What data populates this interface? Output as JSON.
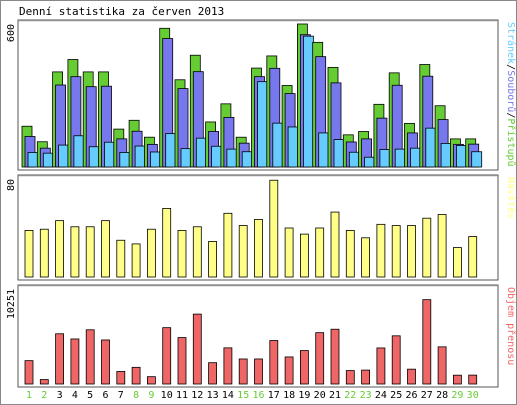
{
  "title": "Denní statistika za červen 2013",
  "colors": {
    "hits": "#66cc33",
    "files": "#7777ee",
    "pages": "#66ccff",
    "visits": "#ffff88",
    "kbytes": "#ee6666",
    "weekend_label": "#66cc33",
    "weekday_label": "#000000"
  },
  "chart_data": [
    {
      "type": "bar",
      "title": "",
      "ylabel": "600",
      "ymax": 600,
      "legend": [
        {
          "name": "Stránek",
          "color": "#66ccff"
        },
        {
          "name": "Souborů",
          "color": "#7777ee"
        },
        {
          "name": "Přístupů",
          "color": "#66cc33"
        }
      ],
      "categories": [
        "1",
        "2",
        "3",
        "4",
        "5",
        "6",
        "7",
        "8",
        "9",
        "10",
        "11",
        "12",
        "13",
        "14",
        "15",
        "16",
        "17",
        "18",
        "19",
        "20",
        "21",
        "22",
        "23",
        "24",
        "25",
        "26",
        "27",
        "28",
        "29",
        "30"
      ],
      "series": [
        {
          "name": "Přístupů",
          "values": [
            171,
            106,
            399,
            451,
            399,
            399,
            159,
            196,
            125,
            582,
            366,
            469,
            189,
            265,
            125,
            415,
            466,
            342,
            600,
            523,
            418,
            135,
            149,
            263,
            395,
            183,
            430,
            257,
            118,
            118
          ]
        },
        {
          "name": "Souborů",
          "values": [
            128,
            79,
            344,
            379,
            337,
            339,
            118,
            150,
            95,
            539,
            329,
            400,
            149,
            208,
            100,
            379,
            414,
            308,
            555,
            463,
            353,
            105,
            118,
            205,
            343,
            143,
            381,
            199,
            95,
            96
          ]
        },
        {
          "name": "Stránek",
          "values": [
            61,
            58,
            92,
            131,
            85,
            104,
            61,
            88,
            63,
            140,
            77,
            121,
            87,
            75,
            64,
            358,
            184,
            168,
            549,
            143,
            115,
            62,
            41,
            73,
            75,
            79,
            163,
            99,
            90,
            64
          ]
        }
      ]
    },
    {
      "type": "bar",
      "title": "",
      "ylabel": "80",
      "ymax": 80,
      "legend": [
        {
          "name": "Návštěv",
          "color": "#ffff88"
        }
      ],
      "categories": [
        "1",
        "2",
        "3",
        "4",
        "5",
        "6",
        "7",
        "8",
        "9",
        "10",
        "11",
        "12",
        "13",
        "14",
        "15",
        "16",
        "17",
        "18",
        "19",
        "20",
        "21",
        "22",
        "23",
        "24",
        "25",
        "26",
        "27",
        "28",
        "29",
        "30"
      ],
      "series": [
        {
          "name": "Návštěv",
          "values": [
            38,
            39,
            46,
            41,
            41,
            46,
            30,
            27,
            39,
            56,
            38,
            41,
            29,
            52,
            42,
            47,
            79,
            40,
            35,
            40,
            53,
            38,
            32,
            43,
            42,
            42,
            48,
            51,
            24,
            33
          ]
        }
      ]
    },
    {
      "type": "bar",
      "title": "",
      "ylabel": "10251",
      "ymax": 10251,
      "legend": [
        {
          "name": "Objem přenosu",
          "color": "#ee6666"
        }
      ],
      "categories": [
        "1",
        "2",
        "3",
        "4",
        "5",
        "6",
        "7",
        "8",
        "9",
        "10",
        "11",
        "12",
        "13",
        "14",
        "15",
        "16",
        "17",
        "18",
        "19",
        "20",
        "21",
        "22",
        "23",
        "24",
        "25",
        "26",
        "27",
        "28",
        "29",
        "30"
      ],
      "series": [
        {
          "name": "Objem přenosu",
          "values": [
            2520,
            480,
            5420,
            4860,
            5850,
            4750,
            1350,
            1800,
            790,
            6080,
            5010,
            7540,
            2300,
            3900,
            2700,
            2700,
            4690,
            2920,
            3610,
            5540,
            5910,
            1450,
            1500,
            3890,
            5200,
            1600,
            9100,
            4010,
            950,
            960
          ]
        }
      ]
    }
  ],
  "day_labels": [
    "1",
    "2",
    "3",
    "4",
    "5",
    "6",
    "7",
    "8",
    "9",
    "10",
    "11",
    "12",
    "13",
    "14",
    "15",
    "16",
    "17",
    "18",
    "19",
    "20",
    "21",
    "22",
    "23",
    "24",
    "25",
    "26",
    "27",
    "28",
    "29",
    "30"
  ],
  "weekend_days": [
    "1",
    "2",
    "8",
    "9",
    "15",
    "16",
    "22",
    "23",
    "29",
    "30"
  ]
}
